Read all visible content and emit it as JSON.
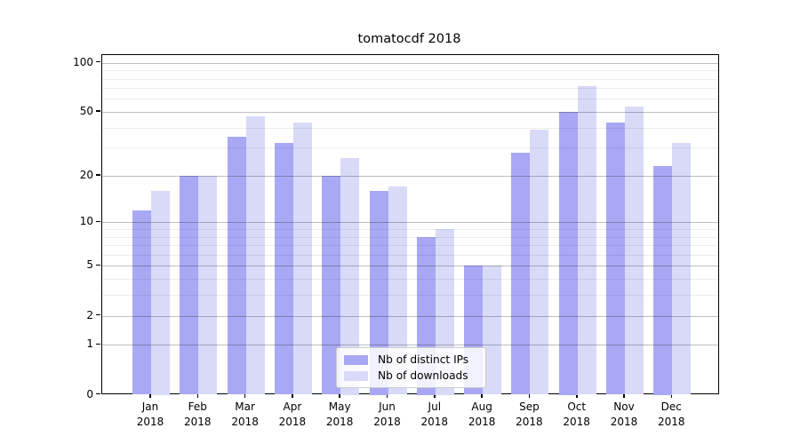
{
  "title": "tomatocdf 2018",
  "legend": {
    "entries": [
      {
        "label": "Nb of distinct IPs"
      },
      {
        "label": "Nb of downloads"
      }
    ]
  },
  "chart_data": {
    "type": "bar",
    "title": "tomatocdf 2018",
    "categories": [
      "Jan",
      "Feb",
      "Mar",
      "Apr",
      "May",
      "Jun",
      "Jul",
      "Aug",
      "Sep",
      "Oct",
      "Nov",
      "Dec"
    ],
    "year_label": "2018",
    "series": [
      {
        "name": "Nb of distinct IPs",
        "color": "#a8a8f4",
        "values": [
          12,
          20,
          35,
          32,
          20,
          16,
          8,
          5,
          28,
          50,
          43,
          23
        ]
      },
      {
        "name": "Nb of downloads",
        "color": "#d9d9f8",
        "values": [
          16,
          20,
          47,
          43,
          26,
          17,
          9,
          5,
          39,
          72,
          54,
          32
        ]
      }
    ],
    "yscale": "log1p",
    "yticks": [
      0,
      1,
      2,
      5,
      10,
      20,
      50,
      100
    ],
    "yminor_ticks": [
      3,
      4,
      6,
      7,
      8,
      9,
      30,
      40,
      60,
      70,
      80,
      90
    ],
    "ylim": [
      0,
      112
    ],
    "xlabel": "",
    "ylabel": "",
    "grid": true,
    "legend_position": "lower center"
  },
  "colors": {
    "distinct_ips_bar": "#a8a8f4",
    "downloads_bar": "#d9d9f8",
    "major_grid": "#bfbfbf",
    "minor_grid": "#ededed",
    "axis_frame": "#000000",
    "background": "#ffffff"
  }
}
